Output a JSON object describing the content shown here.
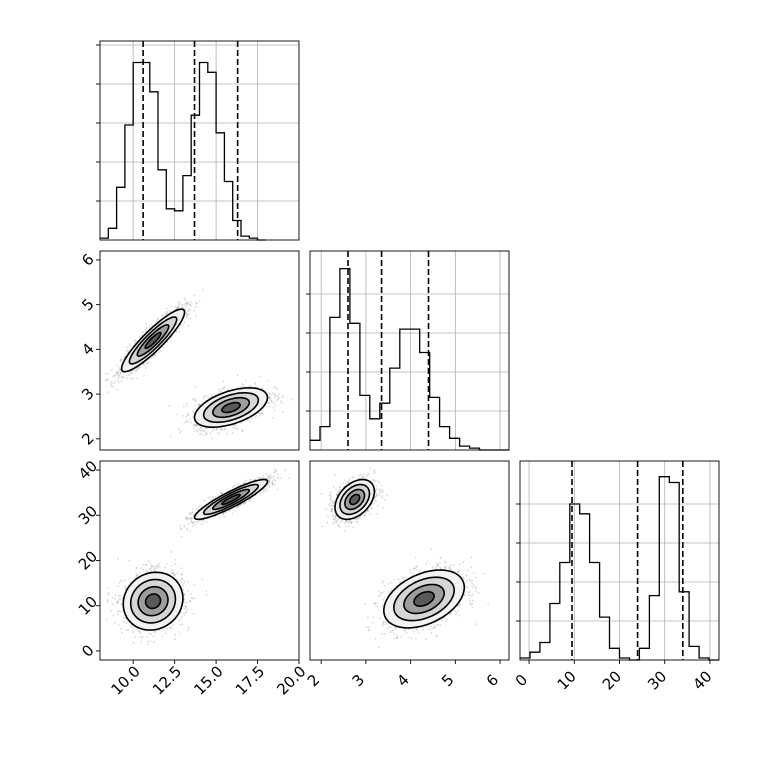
{
  "chart_data": {
    "type": "corner",
    "title": "",
    "params": [
      {
        "range": [
          8.0,
          20.0
        ],
        "ticks": [
          10.0,
          12.5,
          15.0,
          17.5,
          20.0
        ],
        "tick_labels": [
          "10.0",
          "12.5",
          "15.0",
          "17.5",
          "20.0"
        ]
      },
      {
        "range": [
          1.75,
          6.2
        ],
        "ticks": [
          2,
          3,
          4,
          5,
          6
        ],
        "tick_labels": [
          "2",
          "3",
          "4",
          "5",
          "6"
        ]
      },
      {
        "range": [
          -2,
          42
        ],
        "ticks": [
          0,
          10,
          20,
          30,
          40
        ],
        "tick_labels": [
          "0",
          "10",
          "20",
          "30",
          "40"
        ]
      }
    ],
    "histograms": [
      {
        "param": 0,
        "bin_start": 8.0,
        "bin_width": 0.5,
        "counts": [
          0.01,
          0.06,
          0.27,
          0.59,
          0.91,
          0.91,
          0.76,
          0.36,
          0.16,
          0.15,
          0.33,
          0.64,
          0.91,
          0.86,
          0.55,
          0.3,
          0.1,
          0.02,
          0.01,
          0.0
        ],
        "y_ticks": [
          0.2,
          0.4,
          0.6,
          0.8,
          1.0
        ],
        "quantiles": [
          10.6,
          13.7,
          16.3
        ]
      },
      {
        "param": 1,
        "bin_start": 1.75,
        "bin_width": 0.223,
        "counts": [
          0.05,
          0.12,
          0.68,
          0.93,
          0.65,
          0.28,
          0.16,
          0.24,
          0.42,
          0.62,
          0.62,
          0.5,
          0.27,
          0.12,
          0.06,
          0.02,
          0.01,
          0.0,
          0.0,
          0.0
        ],
        "y_ticks": [
          0.2,
          0.4,
          0.6,
          0.8
        ],
        "quantiles": [
          2.6,
          3.35,
          4.4
        ]
      },
      {
        "param": 2,
        "bin_start": -2.0,
        "bin_width": 2.2,
        "counts": [
          0.01,
          0.04,
          0.09,
          0.29,
          0.5,
          0.8,
          0.75,
          0.5,
          0.22,
          0.06,
          0.01,
          0.0,
          0.06,
          0.33,
          0.94,
          0.91,
          0.35,
          0.07,
          0.01,
          0.0
        ],
        "y_ticks": [
          0.2,
          0.4,
          0.6,
          0.8
        ],
        "quantiles": [
          9.5,
          24.0,
          34.0
        ]
      }
    ],
    "scatter_panels": [
      {
        "x_param": 0,
        "y_param": 1,
        "clusters": [
          {
            "cx": 11.2,
            "cy": 4.2,
            "sx": 0.95,
            "sy": 0.35,
            "rho": 0.9,
            "n": 1500
          },
          {
            "cx": 15.9,
            "cy": 2.7,
            "sx": 1.1,
            "sy": 0.22,
            "rho": 0.5,
            "n": 1500
          }
        ]
      },
      {
        "x_param": 0,
        "y_param": 2,
        "clusters": [
          {
            "cx": 15.9,
            "cy": 33.5,
            "sx": 1.1,
            "sy": 2.2,
            "rho": 0.9,
            "n": 1500
          },
          {
            "cx": 11.2,
            "cy": 11.0,
            "sx": 0.9,
            "sy": 3.2,
            "rho": 0.1,
            "n": 1500
          }
        ]
      },
      {
        "x_param": 1,
        "y_param": 2,
        "clusters": [
          {
            "cx": 2.75,
            "cy": 33.5,
            "sx": 0.22,
            "sy": 2.2,
            "rho": 0.4,
            "n": 1500
          },
          {
            "cx": 4.3,
            "cy": 11.5,
            "sx": 0.45,
            "sy": 3.2,
            "rho": 0.4,
            "n": 1500
          }
        ]
      }
    ],
    "contour_levels": [
      0.5,
      1.0,
      1.5,
      2.0
    ],
    "colors": {
      "points": "#555555",
      "line": "#000000",
      "grid": "#b0b0b0"
    }
  }
}
